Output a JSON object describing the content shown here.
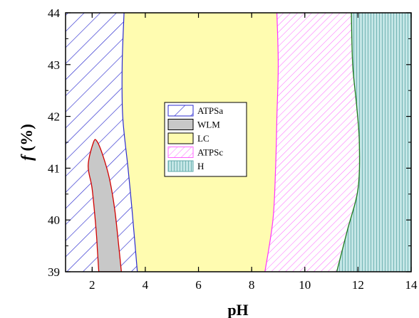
{
  "chart_data": {
    "type": "phase-diagram",
    "xlabel": "pH",
    "ylabel_italic": "f",
    "ylabel_rest": " (%)",
    "xlim": [
      1,
      14
    ],
    "ylim": [
      39,
      44
    ],
    "xticks": [
      2,
      4,
      6,
      8,
      10,
      12,
      14
    ],
    "yticks": [
      39,
      40,
      41,
      42,
      43,
      44
    ],
    "grid": false,
    "legend_placement": "center-left",
    "regions": [
      {
        "name": "ATPSa",
        "pattern": "diagonal-hatch",
        "color": "#2b2bcf",
        "fill": "#ffffff"
      },
      {
        "name": "WLM",
        "pattern": "solid",
        "color": "#c8c8c8",
        "edge": "#d10000",
        "fill": "#c8c8c8"
      },
      {
        "name": "LC",
        "pattern": "solid",
        "color": "#fffcb0",
        "fill": "#fffcb0"
      },
      {
        "name": "ATPSc",
        "pattern": "diagonal-hatch",
        "color": "#ff66ff",
        "fill": "#ffffff"
      },
      {
        "name": "H",
        "pattern": "vertical-hatch",
        "color": "#5fa9a9",
        "fill": "#c4e6e6"
      }
    ],
    "boundaries": {
      "ATPSa_LC": [
        [
          3.2,
          44
        ],
        [
          3.13,
          43
        ],
        [
          3.15,
          42
        ],
        [
          3.35,
          41
        ],
        [
          3.5,
          40.2
        ],
        [
          3.7,
          39
        ]
      ],
      "WLM": [
        [
          2.25,
          39
        ],
        [
          2.2,
          39.4
        ],
        [
          2.15,
          39.8
        ],
        [
          2.0,
          40.6
        ],
        [
          1.85,
          41.05
        ],
        [
          2.05,
          41.5
        ],
        [
          2.18,
          41.52
        ],
        [
          2.4,
          41.25
        ],
        [
          2.65,
          40.8
        ],
        [
          2.85,
          40.2
        ],
        [
          3.0,
          39.5
        ],
        [
          3.1,
          39
        ]
      ],
      "LC_ATPSc": [
        [
          8.95,
          44
        ],
        [
          9.0,
          43
        ],
        [
          8.95,
          42
        ],
        [
          8.9,
          41
        ],
        [
          8.8,
          40
        ],
        [
          8.5,
          39
        ]
      ],
      "ATPSc_H": [
        [
          11.75,
          44
        ],
        [
          11.8,
          43.0
        ],
        [
          11.95,
          42.2
        ],
        [
          12.05,
          41.5
        ],
        [
          12.0,
          40.6
        ],
        [
          11.6,
          39.8
        ],
        [
          11.2,
          39
        ]
      ]
    }
  }
}
